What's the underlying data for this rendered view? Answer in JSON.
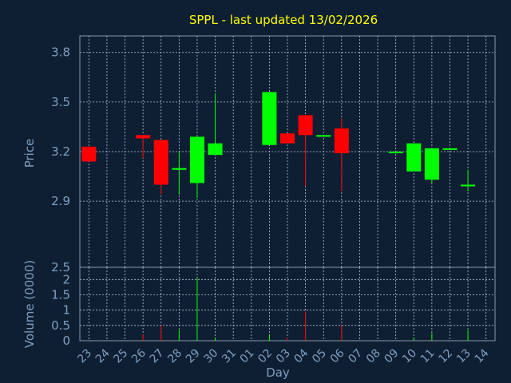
{
  "chart_data": {
    "type": "candlestick",
    "title": "SPPL - last updated 13/02/2026",
    "xlabel": "Day",
    "price_axis": {
      "label": "Price",
      "ylim": [
        2.5,
        3.9
      ],
      "ticks": [
        "2.5",
        "2.9",
        "3.2",
        "3.5",
        "3.8"
      ]
    },
    "volume_axis": {
      "label": "Volume (0000)",
      "ylim": [
        0,
        2.4
      ],
      "ticks": [
        "0",
        "0.5",
        "1",
        "1.5",
        "2"
      ]
    },
    "grid": true,
    "categories": [
      "23",
      "24",
      "25",
      "26",
      "27",
      "28",
      "29",
      "30",
      "31",
      "01",
      "02",
      "03",
      "04",
      "05",
      "06",
      "07",
      "08",
      "09",
      "10",
      "11",
      "12",
      "13",
      "14"
    ],
    "colors": {
      "up": "#00ff00",
      "down": "#ff0000",
      "background": "#0f1f33",
      "text": "#7f9fbf",
      "title": "#ffff00"
    },
    "candles": [
      {
        "day": "23",
        "open": 3.23,
        "close": 3.14,
        "high": 3.23,
        "low": 3.14,
        "volume": 0.0
      },
      {
        "day": "26",
        "open": 3.3,
        "close": 3.28,
        "high": 3.3,
        "low": 3.16,
        "volume": 0.2
      },
      {
        "day": "27",
        "open": 3.27,
        "close": 3.0,
        "high": 3.27,
        "low": 2.94,
        "volume": 0.5
      },
      {
        "day": "28",
        "open": 3.09,
        "close": 3.1,
        "high": 3.2,
        "low": 2.94,
        "volume": 0.35
      },
      {
        "day": "29",
        "open": 3.01,
        "close": 3.29,
        "high": 3.29,
        "low": 2.92,
        "volume": 2.05
      },
      {
        "day": "30",
        "open": 3.18,
        "close": 3.25,
        "high": 3.55,
        "low": 3.18,
        "volume": 0.1
      },
      {
        "day": "02",
        "open": 3.24,
        "close": 3.56,
        "high": 3.56,
        "low": 3.24,
        "volume": 0.2
      },
      {
        "day": "03",
        "open": 3.31,
        "close": 3.25,
        "high": 3.31,
        "low": 3.25,
        "volume": 0.1
      },
      {
        "day": "04",
        "open": 3.42,
        "close": 3.3,
        "high": 3.42,
        "low": 2.99,
        "volume": 0.95
      },
      {
        "day": "05",
        "open": 3.29,
        "close": 3.3,
        "high": 3.3,
        "low": 3.29,
        "volume": 0.0
      },
      {
        "day": "06",
        "open": 3.34,
        "close": 3.19,
        "high": 3.4,
        "low": 2.96,
        "volume": 0.5
      },
      {
        "day": "09",
        "open": 3.19,
        "close": 3.2,
        "high": 3.2,
        "low": 3.19,
        "volume": 0.0
      },
      {
        "day": "10",
        "open": 3.08,
        "close": 3.25,
        "high": 3.25,
        "low": 3.08,
        "volume": 0.1
      },
      {
        "day": "11",
        "open": 3.03,
        "close": 3.22,
        "high": 3.22,
        "low": 3.01,
        "volume": 0.25
      },
      {
        "day": "12",
        "open": 3.21,
        "close": 3.22,
        "high": 3.22,
        "low": 3.21,
        "volume": 0.0
      },
      {
        "day": "13",
        "open": 2.99,
        "close": 3.0,
        "high": 3.09,
        "low": 2.96,
        "volume": 0.35
      }
    ]
  }
}
